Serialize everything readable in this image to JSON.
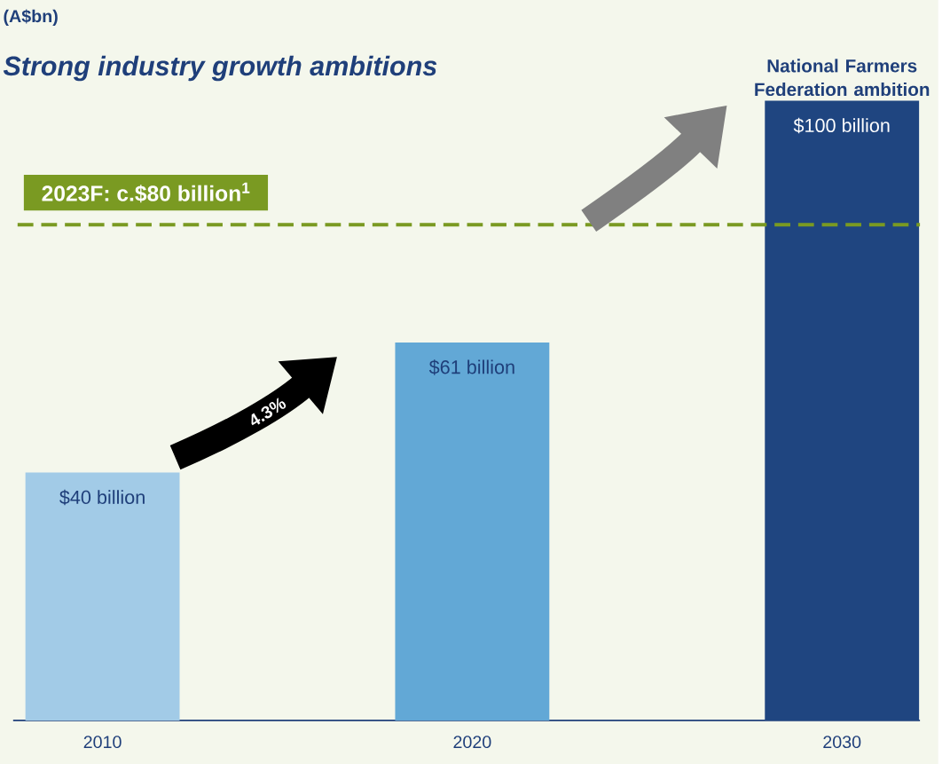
{
  "chart_data": {
    "type": "bar",
    "title": "Strong industry growth ambitions",
    "ylabel": "(A$bn)",
    "categories": [
      "2010",
      "2020",
      "2030"
    ],
    "values": [
      40,
      61,
      100
    ],
    "colors": [
      "#a2cbe7",
      "#62a8d6",
      "#1f4580"
    ],
    "value_labels": [
      "$40 billion",
      "$61 billion",
      "$100 billion"
    ],
    "ylim": [
      0,
      100
    ],
    "tick_labels": "x",
    "ref_lines": [
      {
        "axis": "y",
        "value": 80,
        "label": "2023F: c.$80 billion$^{1}$",
        "color": "#7a9a22",
        "line_style": "dashed"
      }
    ],
    "annotations": [
      "National Farmers Federation ambition",
      "4.3%"
    ]
  }
}
